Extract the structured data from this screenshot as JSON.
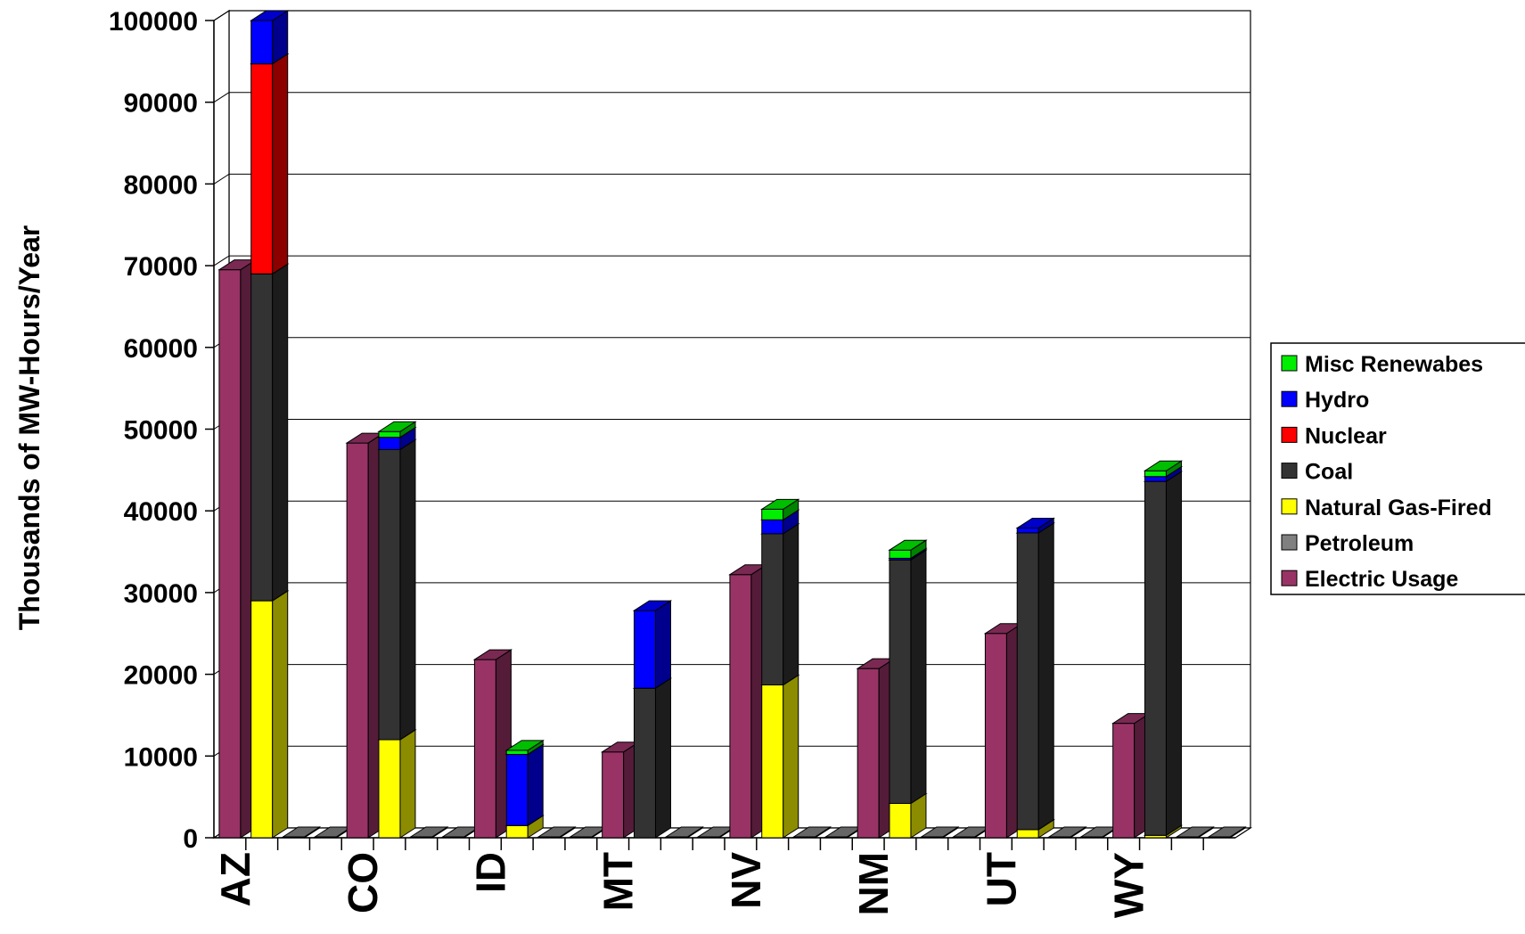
{
  "chart_data": {
    "type": "bar",
    "stacked": true,
    "three_d": true,
    "ylabel": "Thousands of MW-Hours/Year",
    "ylim": [
      0,
      100000
    ],
    "y_ticks": [
      "0",
      "10000",
      "20000",
      "30000",
      "40000",
      "50000",
      "60000",
      "70000",
      "80000",
      "90000",
      "100000"
    ],
    "grid": true,
    "legend_position": "right",
    "categories": [
      "AZ",
      "CO",
      "ID",
      "MT",
      "NV",
      "NM",
      "UT",
      "WY"
    ],
    "usage": {
      "name": "Electric Usage",
      "color": "#993366",
      "values": [
        69500,
        48300,
        21800,
        10500,
        32200,
        20700,
        25000,
        14000
      ]
    },
    "generation_series": [
      {
        "name": "Petroleum",
        "color": "#808080",
        "values": [
          0,
          0,
          0,
          0,
          0,
          0,
          0,
          0
        ]
      },
      {
        "name": "Natural Gas-Fired",
        "color": "#ffff00",
        "values": [
          29000,
          12000,
          1500,
          0,
          18700,
          4200,
          1000,
          300
        ]
      },
      {
        "name": "Coal",
        "color": "#333333",
        "values": [
          40000,
          35500,
          0,
          18300,
          18500,
          29800,
          36300,
          43300
        ]
      },
      {
        "name": "Nuclear",
        "color": "#ff0000",
        "values": [
          25700,
          0,
          0,
          0,
          0,
          0,
          0,
          0
        ]
      },
      {
        "name": "Hydro",
        "color": "#0000ff",
        "values": [
          5300,
          1500,
          8700,
          9500,
          1700,
          200,
          600,
          600
        ]
      },
      {
        "name": "Misc Renewabes",
        "color": "#00ee00",
        "values": [
          0,
          700,
          500,
          0,
          1300,
          1000,
          0,
          700
        ]
      }
    ],
    "legend_order": [
      "Misc Renewabes",
      "Hydro",
      "Nuclear",
      "Coal",
      "Natural Gas-Fired",
      "Petroleum",
      "Electric Usage"
    ]
  }
}
